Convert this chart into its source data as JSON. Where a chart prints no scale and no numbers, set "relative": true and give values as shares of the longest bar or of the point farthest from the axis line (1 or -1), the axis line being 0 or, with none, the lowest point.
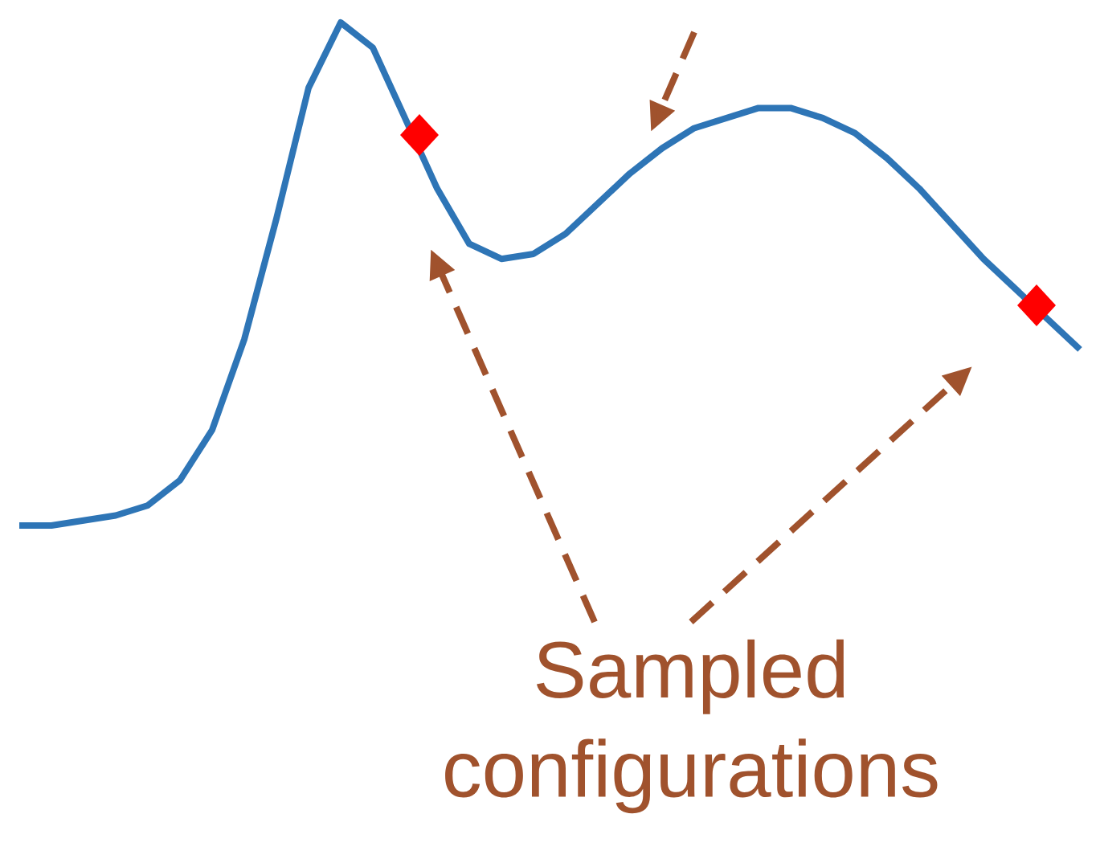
{
  "chart_data": {
    "type": "line",
    "relative": true,
    "categories": [
      null,
      null,
      null,
      null,
      null,
      null,
      null,
      null,
      null,
      null,
      null,
      null,
      null,
      null,
      null,
      null,
      null,
      null,
      null,
      null,
      null,
      null,
      null,
      null,
      null,
      null,
      null,
      null,
      null,
      null,
      null,
      null,
      null,
      null
    ],
    "series": [
      {
        "color": "#2e75b6",
        "values": [
          0,
          0,
          0.01,
          0.02,
          0.04,
          0.09,
          0.19,
          0.37,
          0.61,
          0.87,
          1.0,
          0.95,
          0.81,
          0.67,
          0.56,
          0.53,
          0.54,
          0.58,
          0.64,
          0.7,
          0.75,
          0.79,
          0.81,
          0.83,
          0.83,
          0.81,
          0.78,
          0.73,
          0.67,
          0.6,
          0.53,
          0.47,
          0.41,
          0.35
        ]
      }
    ],
    "annotations": [
      "Sampled configurations"
    ]
  }
}
